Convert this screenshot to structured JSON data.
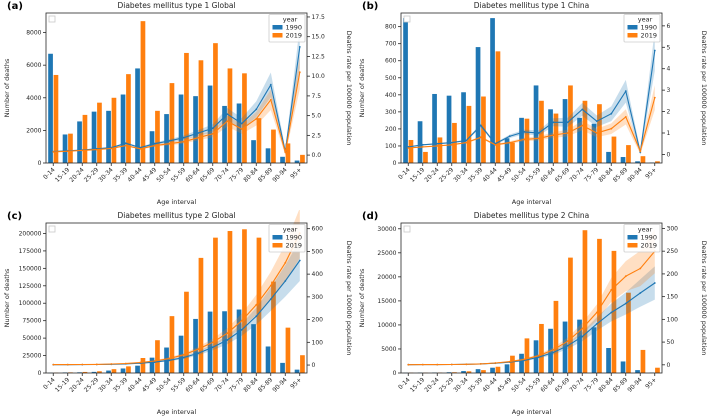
{
  "shared": {
    "xlabel": "Age interval",
    "ylabel_left": "Number of deaths",
    "ylabel_right": "Deaths rate per 100000 population",
    "legend_title": "year",
    "series_names": [
      "1990",
      "2019"
    ],
    "categories": [
      "0-14",
      "15-19",
      "20-24",
      "25-29",
      "30-34",
      "35-39",
      "40-44",
      "45-49",
      "50-54",
      "55-59",
      "60-64",
      "65-69",
      "70-74",
      "75-79",
      "80-84",
      "85-89",
      "90-94",
      "95+"
    ]
  },
  "colors": {
    "c1990": "#1f77b4",
    "c2019": "#ff7f0e",
    "axis": "#262626",
    "legend_border": "#cccccc",
    "band_opacity": "0.25"
  },
  "chart_data": [
    {
      "panel": "(a)",
      "title": "Diabetes mellitus type 1 Global",
      "type": "bar+line dual-axis",
      "categories": [
        "0-14",
        "15-19",
        "20-24",
        "25-29",
        "30-34",
        "35-39",
        "40-44",
        "45-49",
        "50-54",
        "55-59",
        "60-64",
        "65-69",
        "70-74",
        "75-79",
        "80-84",
        "85-89",
        "90-94",
        "95+"
      ],
      "bars": {
        "series": [
          {
            "name": "1990",
            "values": [
              6700,
              1750,
              2550,
              3150,
              3200,
              4200,
              5800,
              1950,
              3000,
              4200,
              4100,
              4750,
              3500,
              3650,
              1400,
              900,
              380,
              150
            ]
          },
          {
            "name": "2019",
            "values": [
              5400,
              1800,
              2950,
              3700,
              4000,
              5450,
              8700,
              3200,
              4900,
              6750,
              6300,
              7350,
              5800,
              5500,
              2750,
              2050,
              1200,
              500
            ]
          }
        ]
      },
      "rate_lines": {
        "series": [
          {
            "name": "1990",
            "values": [
              0.45,
              0.55,
              0.65,
              0.8,
              0.95,
              1.5,
              0.95,
              1.45,
              1.8,
              2.2,
              2.8,
              3.4,
              5.2,
              4.0,
              5.8,
              8.9,
              0.45,
              13.7
            ]
          },
          {
            "name": "2019",
            "values": [
              0.4,
              0.5,
              0.6,
              0.7,
              0.85,
              1.2,
              0.8,
              1.2,
              1.45,
              1.7,
              2.2,
              2.7,
              4.3,
              3.3,
              4.6,
              7.0,
              0.35,
              10.5
            ]
          }
        ]
      },
      "axes": {
        "left": {
          "ticks": [
            0,
            2000,
            4000,
            6000,
            8000
          ],
          "labels": [
            "0",
            "2000",
            "4000",
            "6000",
            "8000"
          ],
          "max": 9200
        },
        "right": {
          "ticks": [
            0,
            2.5,
            5,
            7.5,
            10,
            12.5,
            15,
            17.5
          ],
          "labels": [
            "0.0",
            "2.5",
            "5.0",
            "7.5",
            "10.0",
            "12.5",
            "15.0",
            "17.5"
          ],
          "min": -1.0,
          "max": 18.0
        }
      }
    },
    {
      "panel": "(b)",
      "title": "Diabetes mellitus type 1 China",
      "type": "bar+line dual-axis",
      "categories": [
        "0-14",
        "15-19",
        "20-24",
        "25-29",
        "30-34",
        "35-39",
        "40-44",
        "45-49",
        "50-54",
        "55-59",
        "60-64",
        "65-69",
        "70-74",
        "75-79",
        "80-84",
        "85-89",
        "90-94",
        "95+"
      ],
      "bars": {
        "series": [
          {
            "name": "1990",
            "values": [
              850,
              245,
              405,
              395,
              415,
              680,
              850,
              145,
              265,
              455,
              315,
              375,
              265,
              230,
              65,
              35,
              10,
              3
            ]
          },
          {
            "name": "2019",
            "values": [
              135,
              65,
              150,
              235,
              335,
              390,
              655,
              120,
              260,
              365,
              290,
              455,
              365,
              345,
              155,
              105,
              40,
              10
            ]
          }
        ]
      },
      "rate_lines": {
        "series": [
          {
            "name": "1990",
            "values": [
              0.35,
              0.45,
              0.5,
              0.55,
              0.65,
              1.35,
              0.5,
              0.85,
              1.05,
              1.0,
              1.5,
              1.5,
              2.1,
              1.55,
              1.9,
              2.95,
              0.1,
              4.85
            ]
          },
          {
            "name": "2019",
            "values": [
              0.3,
              0.35,
              0.4,
              0.45,
              0.55,
              0.8,
              0.45,
              0.55,
              0.7,
              0.75,
              0.9,
              1.0,
              1.35,
              1.0,
              1.2,
              1.75,
              0.15,
              2.65
            ]
          }
        ]
      },
      "axes": {
        "left": {
          "ticks": [
            0,
            100,
            200,
            300,
            400,
            500,
            600,
            700,
            800
          ],
          "labels": [
            "0",
            "100",
            "200",
            "300",
            "400",
            "500",
            "600",
            "700",
            "800"
          ],
          "max": 880
        },
        "right": {
          "ticks": [
            0,
            1,
            2,
            3,
            4,
            5,
            6
          ],
          "labels": [
            "0",
            "1",
            "2",
            "3",
            "4",
            "5",
            "6"
          ],
          "min": -0.4,
          "max": 6.6
        }
      }
    },
    {
      "panel": "(c)",
      "title": "Diabetes mellitus type 2 Global",
      "type": "bar+line dual-axis",
      "categories": [
        "0-14",
        "15-19",
        "20-24",
        "25-29",
        "30-34",
        "35-39",
        "40-44",
        "45-49",
        "50-54",
        "55-59",
        "60-64",
        "65-69",
        "70-74",
        "75-79",
        "80-84",
        "85-89",
        "90-94",
        "95+"
      ],
      "bars": {
        "series": [
          {
            "name": "1990",
            "values": [
              300,
              800,
              1000,
              1600,
              3500,
              6500,
              10500,
              22000,
              36500,
              53500,
              77500,
              88000,
              88500,
              91000,
              70000,
              38000,
              14500,
              4800
            ]
          },
          {
            "name": "2019",
            "values": [
              400,
              900,
              1500,
              2500,
              5500,
              9500,
              21500,
              47000,
              81500,
              116500,
              165000,
              194000,
              203500,
              206000,
              194000,
              131000,
              65000,
              25500
            ]
          }
        ]
      },
      "rate_lines": {
        "series": [
          {
            "name": "1990",
            "values": [
              1.5,
              1.5,
              2,
              2.5,
              3.5,
              5,
              8,
              13,
              21,
              33,
              52,
              78,
              110,
              155,
              215,
              290,
              370,
              460
            ]
          },
          {
            "name": "2019",
            "values": [
              2,
              2,
              2.5,
              3,
              4.5,
              7,
              11,
              18,
              29,
              45,
              70,
              100,
              140,
              195,
              265,
              350,
              450,
              580
            ]
          }
        ]
      },
      "axes": {
        "left": {
          "ticks": [
            0,
            25000,
            50000,
            75000,
            100000,
            125000,
            150000,
            175000,
            200000
          ],
          "labels": [
            "0",
            "25000",
            "50000",
            "75000",
            "100000",
            "125000",
            "150000",
            "175000",
            "200000"
          ],
          "max": 215000
        },
        "right": {
          "ticks": [
            0,
            100,
            200,
            300,
            400,
            500,
            600
          ],
          "labels": [
            "0",
            "100",
            "200",
            "300",
            "400",
            "500",
            "600"
          ],
          "min": -35,
          "max": 625
        }
      }
    },
    {
      "panel": "(d)",
      "title": "Diabetes mellitus type 2 China",
      "type": "bar+line dual-axis",
      "categories": [
        "0-14",
        "15-19",
        "20-24",
        "25-29",
        "30-34",
        "35-39",
        "40-44",
        "45-49",
        "50-54",
        "55-59",
        "60-64",
        "65-69",
        "70-74",
        "75-79",
        "80-84",
        "85-89",
        "90-94",
        "95+"
      ],
      "bars": {
        "series": [
          {
            "name": "1990",
            "values": [
              50,
              80,
              100,
              160,
              400,
              800,
              1100,
              1800,
              4000,
              6800,
              9200,
              10700,
              11100,
              9500,
              5200,
              2400,
              600,
              100
            ]
          },
          {
            "name": "2019",
            "values": [
              60,
              60,
              90,
              160,
              350,
              600,
              1300,
              3600,
              7200,
              10200,
              15000,
              24000,
              29700,
              27900,
              25400,
              16700,
              4800,
              1100
            ]
          }
        ]
      },
      "rate_lines": {
        "series": [
          {
            "name": "1990",
            "values": [
              0.3,
              0.4,
              0.5,
              0.8,
              1.2,
              2,
              3.5,
              6,
              10,
              17,
              27,
              42,
              62,
              90,
              115,
              135,
              158,
              180
            ]
          },
          {
            "name": "2019",
            "values": [
              0.3,
              0.4,
              0.5,
              0.8,
              1.2,
              2,
              4,
              7,
              12,
              20,
              33,
              52,
              80,
              115,
              165,
              195,
              212,
              250
            ]
          }
        ]
      },
      "axes": {
        "left": {
          "ticks": [
            0,
            5000,
            10000,
            15000,
            20000,
            25000,
            30000
          ],
          "labels": [
            "0",
            "5000",
            "10000",
            "15000",
            "20000",
            "25000",
            "30000"
          ],
          "max": 31200
        },
        "right": {
          "ticks": [
            0,
            50,
            100,
            150,
            200,
            250,
            300
          ],
          "labels": [
            "0",
            "50",
            "100",
            "150",
            "200",
            "250",
            "300"
          ],
          "min": -18,
          "max": 312
        }
      }
    }
  ]
}
